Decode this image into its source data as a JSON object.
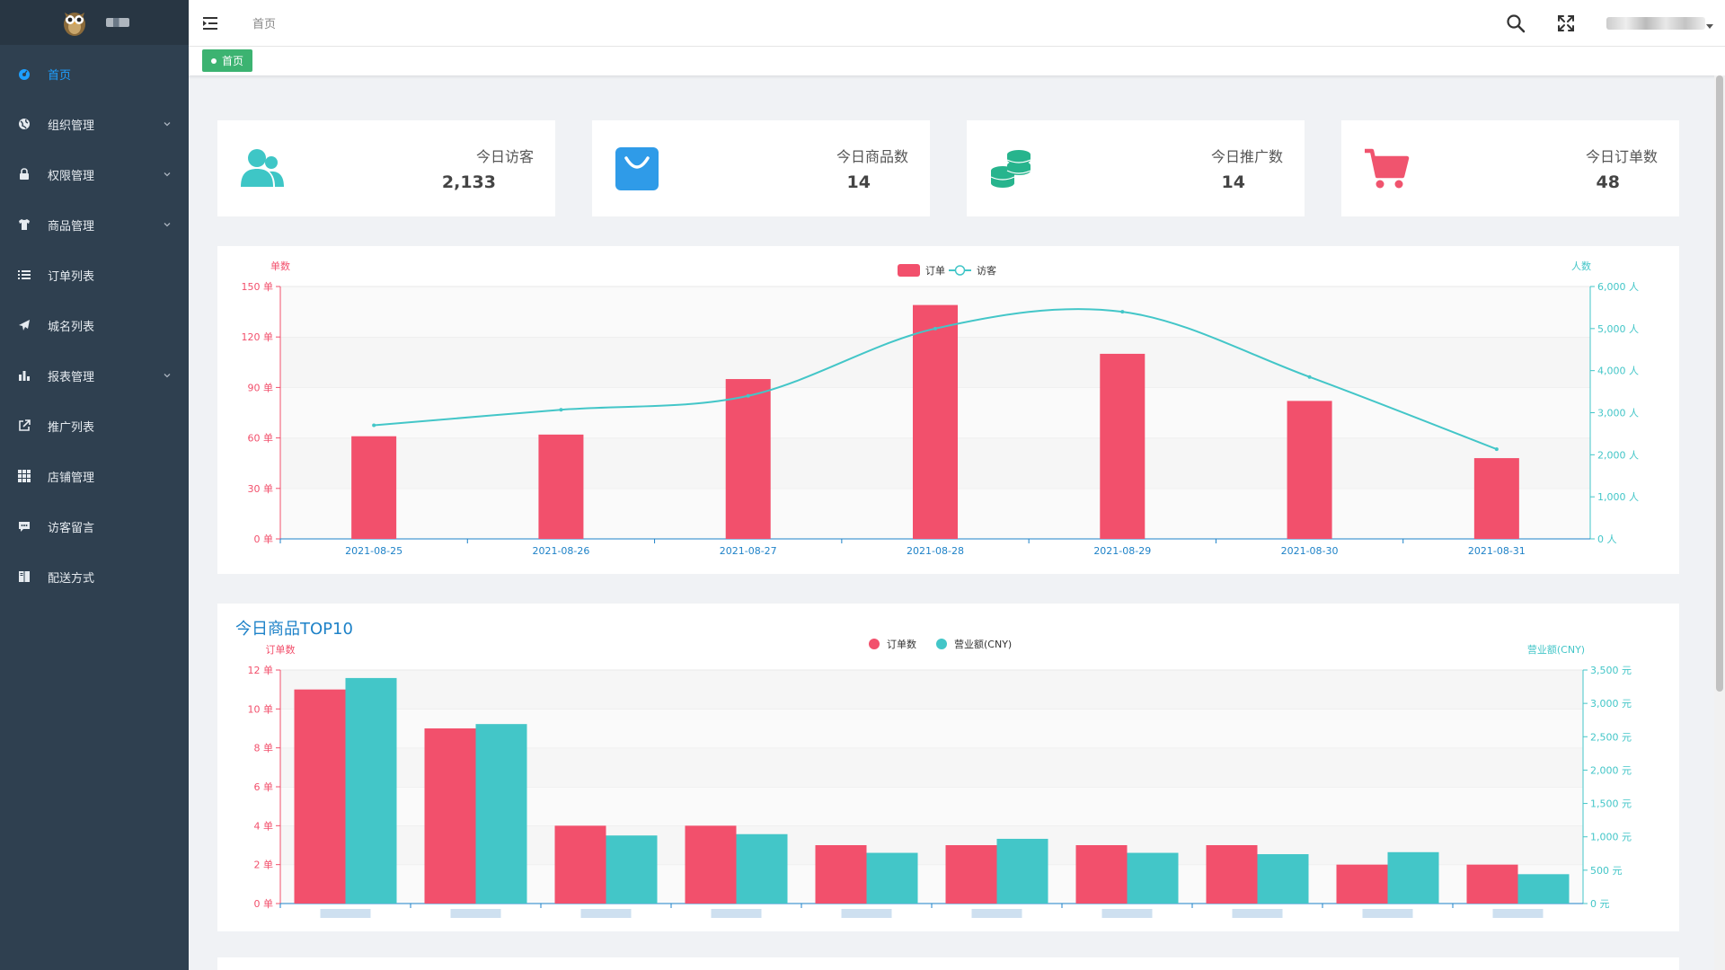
{
  "breadcrumb": "首页",
  "tag": {
    "label": "首页"
  },
  "sidebar": {
    "items": [
      {
        "label": "首页",
        "icon": "dashboard-icon",
        "active": true,
        "expandable": false
      },
      {
        "label": "组织管理",
        "icon": "globe-icon",
        "active": false,
        "expandable": true
      },
      {
        "label": "权限管理",
        "icon": "lock-icon",
        "active": false,
        "expandable": true
      },
      {
        "label": "商品管理",
        "icon": "shirt-icon",
        "active": false,
        "expandable": true
      },
      {
        "label": "订单列表",
        "icon": "list-icon",
        "active": false,
        "expandable": false
      },
      {
        "label": "城名列表",
        "icon": "paper-plane-icon",
        "active": false,
        "expandable": false
      },
      {
        "label": "报表管理",
        "icon": "bar-chart-icon",
        "active": false,
        "expandable": true
      },
      {
        "label": "推广列表",
        "icon": "external-link-icon",
        "active": false,
        "expandable": false
      },
      {
        "label": "店铺管理",
        "icon": "grid-icon",
        "active": false,
        "expandable": false
      },
      {
        "label": "访客留言",
        "icon": "comment-icon",
        "active": false,
        "expandable": false
      },
      {
        "label": "配送方式",
        "icon": "book-icon",
        "active": false,
        "expandable": false
      }
    ]
  },
  "stats": [
    {
      "title": "今日访客",
      "value": "2,133",
      "icon": "users-icon",
      "color": "#3ec6c6"
    },
    {
      "title": "今日商品数",
      "value": "14",
      "icon": "shopping-bag-icon",
      "color": "#2f9be8"
    },
    {
      "title": "今日推广数",
      "value": "14",
      "icon": "coins-icon",
      "color": "#27b48d"
    },
    {
      "title": "今日订单数",
      "value": "48",
      "icon": "shopping-cart-icon",
      "color": "#f0546e"
    }
  ],
  "colors": {
    "red": "#f2506c",
    "teal": "#43c6c8",
    "sidebar": "#2f4050",
    "active": "#1e9fff"
  },
  "chart_data": [
    {
      "type": "bar",
      "title": "",
      "legend": [
        "订单",
        "访客"
      ],
      "legend_position": "top-center",
      "categories": [
        "2021-08-25",
        "2021-08-26",
        "2021-08-27",
        "2021-08-28",
        "2021-08-29",
        "2021-08-30",
        "2021-08-31"
      ],
      "y_left": {
        "label": "单数",
        "unit": "单",
        "min": 0,
        "max": 150,
        "ticks": [
          0,
          30,
          60,
          90,
          120,
          150
        ]
      },
      "y_right": {
        "label": "人数",
        "unit": "人",
        "min": 0,
        "max": 6000,
        "ticks": [
          0,
          1000,
          2000,
          3000,
          4000,
          5000,
          6000
        ]
      },
      "series": [
        {
          "name": "订单",
          "type": "bar",
          "axis": "left",
          "values": [
            61,
            62,
            95,
            139,
            110,
            82,
            48
          ]
        },
        {
          "name": "访客",
          "type": "line",
          "axis": "right",
          "values": [
            2700,
            3070,
            3400,
            5000,
            5400,
            3850,
            2133
          ]
        }
      ],
      "grid": true
    },
    {
      "type": "bar",
      "title": "今日商品TOP10",
      "legend": [
        "订单数",
        "营业额(CNY)"
      ],
      "legend_position": "top-center",
      "categories": [
        "",
        "",
        "",
        "",
        "",
        "",
        "",
        "",
        "",
        ""
      ],
      "y_left": {
        "label": "订单数",
        "unit": "单",
        "min": 0,
        "max": 12,
        "ticks": [
          0,
          2,
          4,
          6,
          8,
          10,
          12
        ]
      },
      "y_right": {
        "label": "营业额(CNY)",
        "unit": "元",
        "min": 0,
        "max": 3500,
        "ticks": [
          0,
          500,
          1000,
          1500,
          2000,
          2500,
          3000,
          3500
        ]
      },
      "series": [
        {
          "name": "订单数",
          "type": "bar",
          "axis": "left",
          "values": [
            11,
            9,
            4,
            4,
            3,
            3,
            3,
            3,
            2,
            2
          ]
        },
        {
          "name": "营业额(CNY)",
          "type": "bar",
          "axis": "right",
          "values": [
            3380,
            2690,
            1020,
            1040,
            760,
            970,
            760,
            740,
            770,
            440
          ]
        }
      ],
      "grid": true
    }
  ]
}
